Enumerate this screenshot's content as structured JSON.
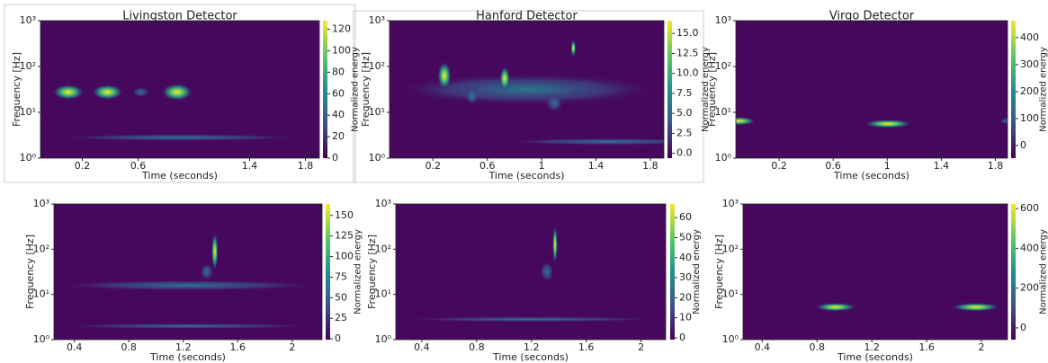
{
  "chart_data": [
    {
      "type": "heatmap",
      "title": "Livingston Detector",
      "xlabel": "Time (seconds)",
      "ylabel": "Frequency [Hz]",
      "colorbar_label": "Normalized energy",
      "log_y": true,
      "xlim": [
        -0.1,
        1.9
      ],
      "xticks": [
        0.2,
        0.6,
        1.4,
        1.8
      ],
      "ylim": [
        1,
        1000
      ],
      "yticks": [
        {
          "value": 1,
          "label": "10⁰"
        },
        {
          "value": 10,
          "label": "10¹"
        },
        {
          "value": 100,
          "label": "10²"
        },
        {
          "value": 1000,
          "label": "10³"
        }
      ],
      "clim": [
        0,
        128
      ],
      "cticks": [
        0,
        20,
        40,
        60,
        80,
        100,
        120
      ]
    },
    {
      "type": "heatmap",
      "title": "Hanford Detector",
      "xlabel": "Time (seconds)",
      "ylabel": "Frequency [Hz]",
      "colorbar_label": "Normalized energy",
      "log_y": true,
      "xlim": [
        -0.12,
        1.9
      ],
      "xticks": [
        0.2,
        0.6,
        1,
        1.4,
        1.8
      ],
      "ylim": [
        1,
        1000
      ],
      "yticks": [
        {
          "value": 1,
          "label": "10⁰"
        },
        {
          "value": 10,
          "label": "10¹"
        },
        {
          "value": 100,
          "label": "10²"
        },
        {
          "value": 1000,
          "label": "10³"
        }
      ],
      "clim": [
        -0.6,
        16.6
      ],
      "cticks": [
        {
          "value": 0,
          "label": "0.0"
        },
        2.5,
        {
          "value": 5,
          "label": "5.0"
        },
        7.5,
        {
          "value": 10,
          "label": "10.0"
        },
        12.5,
        {
          "value": 15,
          "label": "15.0"
        }
      ]
    },
    {
      "type": "heatmap",
      "title": "Virgo Detector",
      "xlabel": "Time (seconds)",
      "ylabel": "Frequency [Hz]",
      "colorbar_label": "Normalized energy",
      "log_y": true,
      "xlim": [
        -0.12,
        1.89
      ],
      "xticks": [
        0.2,
        0.6,
        1,
        1.4,
        1.8
      ],
      "ylim": [
        1,
        1000
      ],
      "yticks": [
        {
          "value": 1,
          "label": "10⁰"
        },
        {
          "value": 10,
          "label": "10¹"
        },
        {
          "value": 100,
          "label": "10²"
        },
        {
          "value": 1000,
          "label": "10³"
        }
      ],
      "clim": [
        -47,
        463
      ],
      "cticks": [
        0,
        100,
        200,
        300,
        400
      ]
    },
    {
      "type": "heatmap",
      "xlabel": "Time (seconds)",
      "ylabel": "Frequency [Hz]",
      "colorbar_label": "Normalized energy",
      "log_y": true,
      "xlim": [
        0.25,
        2.22
      ],
      "xticks": [
        0.4,
        0.8,
        1.2,
        1.6,
        2
      ],
      "ylim": [
        1,
        1000
      ],
      "yticks": [
        {
          "value": 1,
          "label": "10⁰"
        },
        {
          "value": 10,
          "label": "10¹"
        },
        {
          "value": 100,
          "label": "10²"
        },
        {
          "value": 1000,
          "label": "10³"
        }
      ],
      "clim": [
        -1,
        164
      ],
      "cticks": [
        0,
        25,
        50,
        75,
        100,
        125,
        150
      ]
    },
    {
      "type": "heatmap",
      "xlabel": "Time (seconds)",
      "ylabel": "Frequency [Hz]",
      "colorbar_label": "Normalized energy",
      "log_y": true,
      "xlim": [
        0.21,
        2.18
      ],
      "xticks": [
        0.4,
        0.8,
        1.2,
        1.6,
        2
      ],
      "ylim": [
        1,
        1000
      ],
      "yticks": [
        {
          "value": 1,
          "label": "10⁰"
        },
        {
          "value": 10,
          "label": "10¹"
        },
        {
          "value": 100,
          "label": "10²"
        },
        {
          "value": 1000,
          "label": "10³"
        }
      ],
      "clim": [
        -0.9,
        66.8
      ],
      "cticks": [
        0,
        10,
        20,
        30,
        40,
        50,
        60
      ]
    },
    {
      "type": "heatmap",
      "xlabel": "Time (seconds)",
      "ylabel": "Frequency [Hz]",
      "colorbar_label": "Normalized energy",
      "log_y": true,
      "xlim": [
        0.26,
        2.19
      ],
      "xticks": [
        0.4,
        0.8,
        1.2,
        1.6,
        2
      ],
      "ylim": [
        1,
        1000
      ],
      "yticks": [
        {
          "value": 1,
          "label": "10⁰"
        },
        {
          "value": 10,
          "label": "10¹"
        },
        {
          "value": 100,
          "label": "10²"
        },
        {
          "value": 1000,
          "label": "10³"
        }
      ],
      "clim": [
        -59,
        623
      ],
      "cticks": [
        0,
        200,
        400,
        600
      ]
    }
  ]
}
